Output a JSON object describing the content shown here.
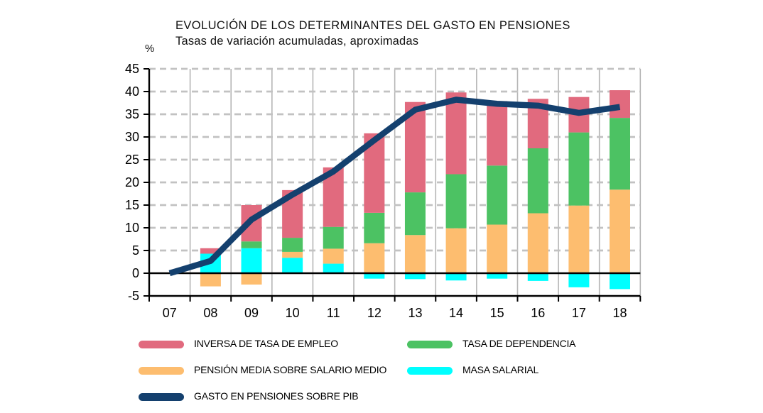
{
  "chart_data": {
    "type": "bar",
    "stacked": true,
    "overlay": "line",
    "title": "EVOLUCIÓN DE LOS DETERMINANTES DEL GASTO EN PENSIONES",
    "subtitle": "Tasas de variación acumuladas, aproximadas",
    "ylabel": "%",
    "ylim": [
      -5,
      45
    ],
    "ytick_step": 5,
    "grid": {
      "horizontal": "dashed",
      "vertical": "solid",
      "zero_line": "solid-black"
    },
    "legend_position": "bottom",
    "categories": [
      "07",
      "08",
      "09",
      "10",
      "11",
      "12",
      "13",
      "14",
      "15",
      "16",
      "17",
      "18"
    ],
    "series": [
      {
        "name": "MASA SALARIAL",
        "color": "#00ffff",
        "values": [
          0,
          4.3,
          5.5,
          3.4,
          2.1,
          -1.2,
          -1.3,
          -1.6,
          -1.2,
          -1.7,
          -3.1,
          -3.5
        ]
      },
      {
        "name": "PENSIÓN MEDIA SOBRE SALARIO MEDIO",
        "color": "#fdbd6f",
        "values": [
          0,
          -2.9,
          -2.5,
          1.3,
          3.3,
          6.6,
          8.4,
          9.9,
          10.7,
          13.2,
          14.9,
          18.4
        ]
      },
      {
        "name": "TASA DE DEPENDENCIA",
        "color": "#4cc263",
        "values": [
          0,
          0,
          1.5,
          3.1,
          4.8,
          6.7,
          9.4,
          11.9,
          13.0,
          14.3,
          16.1,
          15.8
        ]
      },
      {
        "name": "INVERSA DE TASA DE EMPLEO",
        "color": "#e16a7e",
        "values": [
          0,
          1.2,
          8.0,
          10.5,
          13.1,
          17.5,
          19.9,
          18.0,
          14.2,
          10.9,
          7.8,
          6.1
        ]
      }
    ],
    "line_series": {
      "name": "GASTO EN PENSIONES SOBRE PIB",
      "color": "#14406e",
      "values": [
        0,
        2.7,
        11.8,
        17.3,
        22.4,
        29.3,
        36.0,
        38.2,
        37.3,
        36.9,
        35.3,
        36.6
      ]
    },
    "legend": [
      {
        "label": "INVERSA DE TASA DE EMPLEO",
        "color": "#e16a7e",
        "kind": "bar"
      },
      {
        "label": "TASA DE DEPENDENCIA",
        "color": "#4cc263",
        "kind": "bar"
      },
      {
        "label": "PENSIÓN MEDIA SOBRE SALARIO MEDIO",
        "color": "#fdbd6f",
        "kind": "bar"
      },
      {
        "label": "MASA SALARIAL",
        "color": "#00ffff",
        "kind": "bar"
      },
      {
        "label": "GASTO EN PENSIONES SOBRE PIB",
        "color": "#14406e",
        "kind": "line"
      }
    ],
    "axis_colors": {
      "frame": "#000000",
      "vertical_grid": "#b5b5b5",
      "horizontal_grid": "#c2c2c2",
      "tick_label": "#000000"
    }
  }
}
